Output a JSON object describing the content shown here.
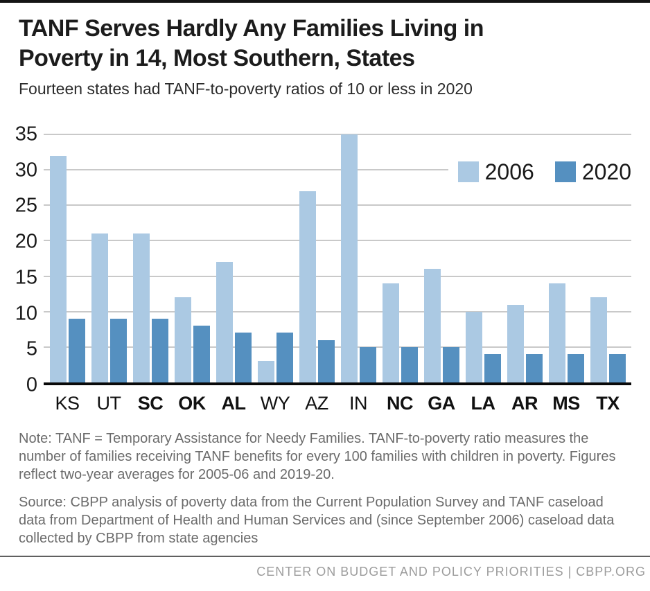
{
  "header": {
    "title_line1": "TANF Serves Hardly Any Families Living in",
    "title_line2": "Poverty in 14, Most Southern, States",
    "subtitle": "Fourteen states had TANF-to-poverty ratios of 10 or less in 2020"
  },
  "chart_data": {
    "type": "bar",
    "title": "",
    "xlabel": "",
    "ylabel": "",
    "categories": [
      "KS",
      "UT",
      "SC",
      "OK",
      "AL",
      "WY",
      "AZ",
      "IN",
      "NC",
      "GA",
      "LA",
      "AR",
      "MS",
      "TX"
    ],
    "bold_categories": [
      "SC",
      "OK",
      "AL",
      "NC",
      "GA",
      "LA",
      "AR",
      "MS",
      "TX"
    ],
    "series": [
      {
        "name": "2006",
        "color": "#abc9e3",
        "values": [
          32,
          21,
          21,
          12,
          17,
          3,
          27,
          35,
          14,
          16,
          10,
          11,
          14,
          12
        ]
      },
      {
        "name": "2020",
        "color": "#5590c0",
        "values": [
          9,
          9,
          9,
          8,
          7,
          7,
          6,
          5,
          5,
          5,
          4,
          4,
          4,
          4
        ]
      }
    ],
    "ylim": [
      0,
      35
    ],
    "yticks": [
      0,
      5,
      10,
      15,
      20,
      25,
      30,
      35
    ],
    "grid": true,
    "legend_position": "top-right"
  },
  "notes": {
    "note": "Note: TANF = Temporary Assistance for Needy Families. TANF-to-poverty ratio measures the number of families receiving TANF benefits for every 100 families with children in poverty. Figures reflect two-year averages for 2005-06 and 2019-20.",
    "source": "Source: CBPP analysis of poverty data from the Current Population Survey and TANF caseload data from Department of Health and Human Services and (since September 2006) caseload data collected by CBPP from state agencies"
  },
  "footer": {
    "text": "CENTER ON BUDGET AND POLICY PRIORITIES | CBPP.ORG"
  },
  "colors": {
    "bar_2006": "#abc9e3",
    "bar_2020": "#5590c0",
    "gridline": "#c9c9c9",
    "axis_line": "#0a0a0a",
    "note_text": "#6b6b6b",
    "footer_text": "#9c9c9c",
    "top_bar": "#141414"
  }
}
